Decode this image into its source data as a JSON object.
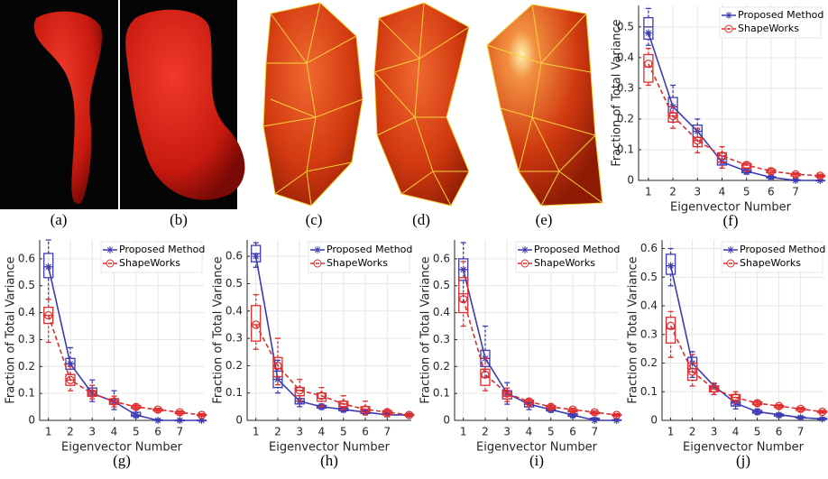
{
  "image_panels": [
    {
      "label": "(a)"
    },
    {
      "label": "(b)"
    },
    {
      "label": "(c)"
    },
    {
      "label": "(d)"
    },
    {
      "label": "(e)"
    }
  ],
  "chart_data": [
    {
      "type": "box",
      "label": "(f)",
      "x_label": "Eigenvector Number",
      "y_label": "Fraction of Total Variance",
      "x": [
        1,
        2,
        3,
        4,
        5,
        6,
        7,
        8
      ],
      "xlim": [
        0.6,
        8.1
      ],
      "xticks": [
        1,
        2,
        3,
        4,
        5,
        6,
        7
      ],
      "ylim": [
        0,
        0.57
      ],
      "yticks": [
        0,
        0.1,
        0.2,
        0.3,
        0.4,
        0.5
      ],
      "grid": true,
      "legend": "upper right",
      "series": [
        {
          "name": "Proposed Method",
          "color": "#3b3bb3",
          "dashed": false,
          "marker": "star",
          "values": [
            0.48,
            0.24,
            0.16,
            0.06,
            0.03,
            0.01,
            0,
            0
          ],
          "boxes": [
            [
              0.44,
              0.46,
              0.5,
              0.53,
              0.56
            ],
            [
              0.19,
              0.22,
              0.24,
              0.27,
              0.31
            ],
            [
              0.11,
              0.14,
              0.16,
              0.18,
              0.2
            ],
            [
              0.04,
              0.05,
              0.06,
              0.07,
              0.09
            ],
            [
              0.02,
              0.025,
              0.03,
              0.035,
              0.04
            ],
            [
              0.005,
              0.008,
              0.01,
              0.012,
              0.015
            ],
            [
              0,
              0,
              0,
              0.002,
              0.004
            ],
            [
              0,
              0,
              0,
              0,
              0.002
            ]
          ]
        },
        {
          "name": "ShapeWorks",
          "color": "#e02d2d",
          "dashed": true,
          "marker": "circle",
          "values": [
            0.38,
            0.21,
            0.13,
            0.08,
            0.05,
            0.03,
            0.02,
            0.015
          ],
          "boxes": [
            [
              0.31,
              0.32,
              0.37,
              0.41,
              0.43
            ],
            [
              0.17,
              0.19,
              0.21,
              0.22,
              0.24
            ],
            [
              0.09,
              0.11,
              0.13,
              0.14,
              0.17
            ],
            [
              0.04,
              0.06,
              0.08,
              0.09,
              0.11
            ],
            [
              0.03,
              0.04,
              0.05,
              0.055,
              0.06
            ],
            [
              0.02,
              0.025,
              0.03,
              0.035,
              0.04
            ],
            [
              0.01,
              0.015,
              0.02,
              0.022,
              0.025
            ],
            [
              0.01,
              0.012,
              0.015,
              0.017,
              0.02
            ]
          ]
        }
      ]
    },
    {
      "type": "box",
      "label": "(g)",
      "x_label": "Eigenvector Number",
      "y_label": "Fraction of Total Variance",
      "x": [
        1,
        2,
        3,
        4,
        5,
        6,
        7,
        8
      ],
      "xlim": [
        0.6,
        8.1
      ],
      "xticks": [
        1,
        2,
        3,
        4,
        5,
        6,
        7
      ],
      "ylim": [
        0,
        0.67
      ],
      "yticks": [
        0,
        0.1,
        0.2,
        0.3,
        0.4,
        0.5,
        0.6
      ],
      "grid": true,
      "legend": "upper right",
      "series": [
        {
          "name": "Proposed Method",
          "color": "#3b3bb3",
          "dashed": false,
          "marker": "star",
          "values": [
            0.57,
            0.21,
            0.1,
            0.07,
            0.02,
            0,
            0,
            0
          ],
          "boxes": [
            [
              0.45,
              0.53,
              0.57,
              0.62,
              0.67
            ],
            [
              0.17,
              0.19,
              0.21,
              0.23,
              0.27
            ],
            [
              0.07,
              0.09,
              0.1,
              0.12,
              0.15
            ],
            [
              0.04,
              0.06,
              0.07,
              0.08,
              0.11
            ],
            [
              0.01,
              0.015,
              0.02,
              0.03,
              0.04
            ],
            [
              0,
              0,
              0,
              0.002,
              0.004
            ],
            [
              0,
              0,
              0,
              0,
              0.002
            ],
            [
              0,
              0,
              0,
              0,
              0.001
            ]
          ]
        },
        {
          "name": "ShapeWorks",
          "color": "#e02d2d",
          "dashed": true,
          "marker": "circle",
          "values": [
            0.39,
            0.15,
            0.1,
            0.07,
            0.05,
            0.04,
            0.03,
            0.02
          ],
          "boxes": [
            [
              0.29,
              0.36,
              0.39,
              0.42,
              0.45
            ],
            [
              0.11,
              0.13,
              0.15,
              0.17,
              0.2
            ],
            [
              0.08,
              0.09,
              0.1,
              0.11,
              0.13
            ],
            [
              0.05,
              0.06,
              0.07,
              0.08,
              0.09
            ],
            [
              0.04,
              0.045,
              0.05,
              0.055,
              0.06
            ],
            [
              0.03,
              0.035,
              0.04,
              0.042,
              0.045
            ],
            [
              0.02,
              0.025,
              0.03,
              0.032,
              0.035
            ],
            [
              0.015,
              0.018,
              0.02,
              0.022,
              0.025
            ]
          ]
        }
      ]
    },
    {
      "type": "box",
      "label": "(h)",
      "x_label": "Eigenvector Number",
      "y_label": "Fraction of Total Variance",
      "x": [
        1,
        2,
        3,
        4,
        5,
        6,
        7,
        8
      ],
      "xlim": [
        0.6,
        8.1
      ],
      "xticks": [
        1,
        2,
        3,
        4,
        5,
        6,
        7
      ],
      "ylim": [
        0,
        0.66
      ],
      "yticks": [
        0,
        0.1,
        0.2,
        0.3,
        0.4,
        0.5,
        0.6
      ],
      "grid": true,
      "legend": "upper right",
      "series": [
        {
          "name": "Proposed Method",
          "color": "#3b3bb3",
          "dashed": false,
          "marker": "star",
          "values": [
            0.6,
            0.15,
            0.07,
            0.05,
            0.04,
            0.03,
            0.02,
            0.02
          ],
          "boxes": [
            [
              0.56,
              0.58,
              0.61,
              0.64,
              0.65
            ],
            [
              0.1,
              0.12,
              0.15,
              0.18,
              0.22
            ],
            [
              0.05,
              0.06,
              0.07,
              0.08,
              0.09
            ],
            [
              0.04,
              0.045,
              0.05,
              0.055,
              0.06
            ],
            [
              0.03,
              0.035,
              0.04,
              0.045,
              0.05
            ],
            [
              0.02,
              0.025,
              0.03,
              0.035,
              0.04
            ],
            [
              0.015,
              0.02,
              0.02,
              0.025,
              0.03
            ],
            [
              0.015,
              0.018,
              0.02,
              0.022,
              0.025
            ]
          ]
        },
        {
          "name": "ShapeWorks",
          "color": "#e02d2d",
          "dashed": true,
          "marker": "circle",
          "values": [
            0.35,
            0.2,
            0.11,
            0.09,
            0.06,
            0.04,
            0.03,
            0.02
          ],
          "boxes": [
            [
              0.26,
              0.29,
              0.35,
              0.42,
              0.46
            ],
            [
              0.13,
              0.16,
              0.19,
              0.23,
              0.3
            ],
            [
              0.07,
              0.09,
              0.11,
              0.12,
              0.15
            ],
            [
              0.05,
              0.07,
              0.08,
              0.1,
              0.12
            ],
            [
              0.04,
              0.05,
              0.06,
              0.07,
              0.09
            ],
            [
              0.02,
              0.03,
              0.04,
              0.05,
              0.07
            ],
            [
              0.015,
              0.02,
              0.03,
              0.035,
              0.04
            ],
            [
              0.015,
              0.018,
              0.02,
              0.022,
              0.025
            ]
          ]
        }
      ]
    },
    {
      "type": "box",
      "label": "(i)",
      "x_label": "Eigenvector Number",
      "y_label": "Fraction of Total Variance",
      "x": [
        1,
        2,
        3,
        4,
        5,
        6,
        7,
        8
      ],
      "xlim": [
        0.6,
        8.1
      ],
      "xticks": [
        1,
        2,
        3,
        4,
        5,
        6,
        7
      ],
      "ylim": [
        0,
        0.67
      ],
      "yticks": [
        0,
        0.1,
        0.2,
        0.3,
        0.4,
        0.5,
        0.6
      ],
      "grid": true,
      "legend": "upper right",
      "series": [
        {
          "name": "Proposed Method",
          "color": "#3b3bb3",
          "dashed": false,
          "marker": "star",
          "values": [
            0.56,
            0.23,
            0.1,
            0.06,
            0.04,
            0.02,
            0,
            0
          ],
          "boxes": [
            [
              0.44,
              0.52,
              0.56,
              0.6,
              0.66
            ],
            [
              0.16,
              0.2,
              0.23,
              0.26,
              0.35
            ],
            [
              0.06,
              0.08,
              0.1,
              0.11,
              0.14
            ],
            [
              0.04,
              0.05,
              0.06,
              0.065,
              0.07
            ],
            [
              0.03,
              0.035,
              0.04,
              0.045,
              0.05
            ],
            [
              0.01,
              0.015,
              0.02,
              0.025,
              0.03
            ],
            [
              0,
              0.002,
              0.005,
              0.008,
              0.01
            ],
            [
              0,
              0,
              0,
              0.002,
              0.004
            ]
          ]
        },
        {
          "name": "ShapeWorks",
          "color": "#e02d2d",
          "dashed": true,
          "marker": "circle",
          "values": [
            0.45,
            0.17,
            0.1,
            0.07,
            0.05,
            0.04,
            0.03,
            0.02
          ],
          "boxes": [
            [
              0.35,
              0.4,
              0.47,
              0.53,
              0.59
            ],
            [
              0.11,
              0.13,
              0.16,
              0.19,
              0.23
            ],
            [
              0.07,
              0.08,
              0.09,
              0.1,
              0.12
            ],
            [
              0.05,
              0.06,
              0.07,
              0.075,
              0.08
            ],
            [
              0.04,
              0.045,
              0.05,
              0.055,
              0.06
            ],
            [
              0.03,
              0.032,
              0.035,
              0.04,
              0.045
            ],
            [
              0.02,
              0.025,
              0.027,
              0.03,
              0.035
            ],
            [
              0.015,
              0.018,
              0.02,
              0.022,
              0.025
            ]
          ]
        }
      ]
    },
    {
      "type": "box",
      "label": "(j)",
      "x_label": "Eigenvector Number",
      "y_label": "Fraction of Total Variance",
      "x": [
        1,
        2,
        3,
        4,
        5,
        6,
        7,
        8
      ],
      "xlim": [
        0.6,
        8.1
      ],
      "xticks": [
        1,
        2,
        3,
        4,
        5,
        6,
        7
      ],
      "ylim": [
        0,
        0.63
      ],
      "yticks": [
        0,
        0.1,
        0.2,
        0.3,
        0.4,
        0.5,
        0.6
      ],
      "grid": true,
      "legend": "upper right",
      "series": [
        {
          "name": "Proposed Method",
          "color": "#3b3bb3",
          "dashed": false,
          "marker": "star",
          "values": [
            0.54,
            0.2,
            0.12,
            0.06,
            0.03,
            0.02,
            0.01,
            0.005
          ],
          "boxes": [
            [
              0.47,
              0.51,
              0.54,
              0.58,
              0.6
            ],
            [
              0.15,
              0.18,
              0.2,
              0.22,
              0.24
            ],
            [
              0.09,
              0.1,
              0.11,
              0.12,
              0.13
            ],
            [
              0.04,
              0.05,
              0.06,
              0.065,
              0.07
            ],
            [
              0.02,
              0.025,
              0.03,
              0.035,
              0.04
            ],
            [
              0.01,
              0.015,
              0.02,
              0.022,
              0.025
            ],
            [
              0.005,
              0.008,
              0.01,
              0.012,
              0.015
            ],
            [
              0,
              0.003,
              0.005,
              0.007,
              0.01
            ]
          ]
        },
        {
          "name": "ShapeWorks",
          "color": "#e02d2d",
          "dashed": true,
          "marker": "circle",
          "values": [
            0.33,
            0.17,
            0.11,
            0.08,
            0.06,
            0.05,
            0.04,
            0.03
          ],
          "boxes": [
            [
              0.22,
              0.27,
              0.32,
              0.36,
              0.38
            ],
            [
              0.12,
              0.14,
              0.17,
              0.2,
              0.23
            ],
            [
              0.09,
              0.1,
              0.11,
              0.12,
              0.13
            ],
            [
              0.06,
              0.07,
              0.08,
              0.09,
              0.1
            ],
            [
              0.05,
              0.055,
              0.06,
              0.065,
              0.07
            ],
            [
              0.04,
              0.045,
              0.05,
              0.052,
              0.055
            ],
            [
              0.03,
              0.035,
              0.04,
              0.042,
              0.045
            ],
            [
              0.025,
              0.028,
              0.03,
              0.032,
              0.035
            ]
          ]
        }
      ]
    }
  ]
}
